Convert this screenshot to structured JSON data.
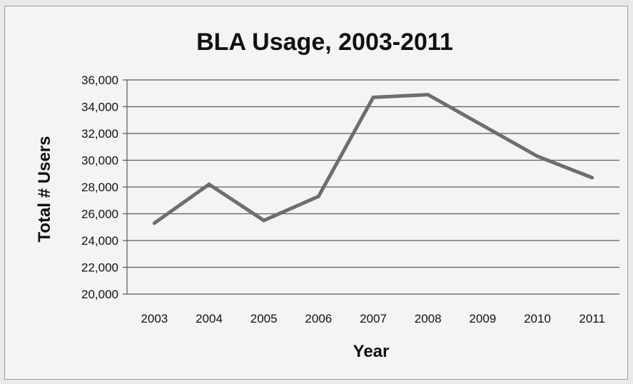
{
  "chart_data": {
    "type": "line",
    "title": "BLA Usage, 2003-2011",
    "xlabel": "Year",
    "ylabel": "Total # Users",
    "categories": [
      "2003",
      "2004",
      "2005",
      "2006",
      "2007",
      "2008",
      "2009",
      "2010",
      "2011"
    ],
    "series": [
      {
        "values": [
          25300,
          28200,
          25500,
          27300,
          34700,
          34900,
          32600,
          30300,
          28700
        ]
      }
    ],
    "ylim": [
      20000,
      36000
    ],
    "yticks": [
      20000,
      22000,
      24000,
      26000,
      28000,
      30000,
      32000,
      34000,
      36000
    ],
    "ytick_labels": [
      "20,000",
      "22,000",
      "24,000",
      "26,000",
      "28,000",
      "30,000",
      "32,000",
      "34,000",
      "36,000"
    ],
    "grid": true,
    "legend": "none",
    "line_color": "#6e6e6e",
    "grid_color": "#5a5a5a"
  }
}
